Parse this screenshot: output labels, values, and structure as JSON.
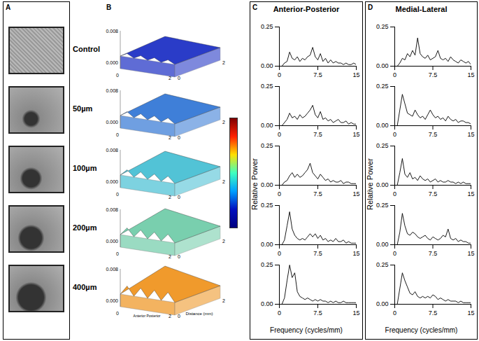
{
  "panel_labels": [
    "A",
    "B",
    "C",
    "D"
  ],
  "conditions": [
    "Control",
    "50µm",
    "100µm",
    "200µm",
    "400µm"
  ],
  "surface_plot": {
    "zlim": [
      0,
      0.008
    ],
    "zticks": [
      {
        "value": 0,
        "label": "0.000"
      },
      0.008
    ],
    "xyticks": [
      0,
      2
    ],
    "axis_title": "Distance (mm)",
    "direction_labels": [
      "Anterior",
      "Posterior"
    ],
    "colors": [
      "#2a3cc8",
      "#3f7fd8",
      "#52c3d6",
      "#79cfae",
      "#f09a2c"
    ],
    "colorbar": {
      "colors": [
        "#7f0000",
        "#ff2000",
        "#ffe000",
        "#40ffc0",
        "#00a0ff",
        "#0010c0",
        "#00007f"
      ]
    }
  },
  "chart_data": [
    {
      "type": "line",
      "title": "Anterior-Posterior",
      "x_label": "Frequency (cycles/mm)",
      "y_label": "Relative Power",
      "xlim": [
        0,
        15
      ],
      "xticks": [
        0,
        7.5,
        15
      ],
      "ylim": [
        0,
        0.25
      ],
      "yticks": [
        {
          "value": 0,
          "label": "0.00"
        },
        0.25
      ],
      "x": [
        0,
        0.5,
        1,
        1.5,
        2,
        2.5,
        3,
        3.5,
        4,
        4.5,
        5,
        5.5,
        6,
        6.5,
        7,
        7.5,
        8,
        8.5,
        9,
        9.5,
        10,
        10.5,
        11,
        11.5,
        12,
        12.5,
        13,
        13.5,
        14,
        14.5,
        15
      ],
      "series": [
        {
          "color": "#000000",
          "values": [
            0,
            0,
            0.02,
            0.03,
            0.09,
            0.05,
            0.04,
            0.06,
            0.03,
            0.05,
            0.04,
            0.06,
            0.07,
            0.12,
            0.06,
            0.04,
            0.08,
            0.03,
            0.05,
            0.02,
            0.04,
            0.02,
            0.03,
            0.02,
            0.02,
            0.01,
            0.02,
            0.01,
            0.01,
            0.02,
            0.01
          ]
        },
        {
          "color": "#000000",
          "values": [
            0,
            0,
            0.02,
            0.04,
            0.08,
            0.05,
            0.06,
            0.04,
            0.07,
            0.05,
            0.06,
            0.08,
            0.1,
            0.13,
            0.07,
            0.05,
            0.09,
            0.04,
            0.05,
            0.03,
            0.04,
            0.02,
            0.03,
            0.04,
            0.02,
            0.02,
            0.03,
            0.01,
            0.02,
            0.01,
            0.01
          ]
        },
        {
          "color": "#000000",
          "values": [
            0,
            0,
            0.02,
            0.03,
            0.06,
            0.08,
            0.05,
            0.07,
            0.05,
            0.06,
            0.08,
            0.1,
            0.14,
            0.08,
            0.06,
            0.04,
            0.07,
            0.05,
            0.03,
            0.04,
            0.02,
            0.03,
            0.02,
            0.02,
            0.03,
            0.01,
            0.02,
            0.02,
            0.01,
            0.01,
            0.01
          ]
        },
        {
          "color": "#000000",
          "values": [
            0,
            0,
            0.03,
            0.12,
            0.21,
            0.1,
            0.06,
            0.04,
            0.03,
            0.04,
            0.03,
            0.05,
            0.07,
            0.05,
            0.07,
            0.04,
            0.06,
            0.03,
            0.04,
            0.02,
            0.03,
            0.02,
            0.04,
            0.02,
            0.02,
            0.03,
            0.01,
            0.02,
            0.01,
            0.01,
            0.01
          ]
        },
        {
          "color": "#000000",
          "values": [
            0,
            0,
            0.04,
            0.15,
            0.25,
            0.17,
            0.2,
            0.08,
            0.05,
            0.04,
            0.03,
            0.04,
            0.03,
            0.02,
            0.03,
            0.02,
            0.03,
            0.02,
            0.02,
            0.01,
            0.02,
            0.01,
            0.02,
            0.01,
            0.01,
            0.02,
            0.01,
            0.01,
            0.01,
            0.01,
            0.01
          ]
        }
      ]
    },
    {
      "type": "line",
      "title": "Medial-Lateral",
      "x_label": "Frequency (cycles/mm)",
      "y_label": "Relative Power",
      "xlim": [
        0,
        15
      ],
      "xticks": [
        0,
        7.5,
        15
      ],
      "ylim": [
        0,
        0.25
      ],
      "yticks": [
        {
          "value": 0,
          "label": "0.00"
        },
        0.25
      ],
      "x": [
        0,
        0.5,
        1,
        1.5,
        2,
        2.5,
        3,
        3.5,
        4,
        4.5,
        5,
        5.5,
        6,
        6.5,
        7,
        7.5,
        8,
        8.5,
        9,
        9.5,
        10,
        10.5,
        11,
        11.5,
        12,
        12.5,
        13,
        13.5,
        14,
        14.5,
        15
      ],
      "series": [
        {
          "color": "#000000",
          "values": [
            0,
            0,
            0.02,
            0.05,
            0.04,
            0.08,
            0.06,
            0.1,
            0.07,
            0.18,
            0.08,
            0.06,
            0.05,
            0.07,
            0.04,
            0.05,
            0.06,
            0.1,
            0.05,
            0.04,
            0.05,
            0.03,
            0.06,
            0.04,
            0.03,
            0.02,
            0.04,
            0.03,
            0.02,
            0.03,
            0.01
          ]
        },
        {
          "color": "#000000",
          "values": [
            0,
            0,
            0.1,
            0.2,
            0.14,
            0.08,
            0.07,
            0.06,
            0.1,
            0.07,
            0.05,
            0.06,
            0.04,
            0.07,
            0.1,
            0.07,
            0.05,
            0.06,
            0.04,
            0.05,
            0.03,
            0.06,
            0.04,
            0.03,
            0.04,
            0.02,
            0.03,
            0.03,
            0.02,
            0.02,
            0.01
          ]
        },
        {
          "color": "#000000",
          "values": [
            0,
            0,
            0.08,
            0.17,
            0.07,
            0.05,
            0.08,
            0.04,
            0.05,
            0.03,
            0.06,
            0.04,
            0.03,
            0.04,
            0.02,
            0.03,
            0.04,
            0.02,
            0.03,
            0.02,
            0.02,
            0.03,
            0.02,
            0.02,
            0.01,
            0.02,
            0.01,
            0.02,
            0.01,
            0.01,
            0.01
          ]
        },
        {
          "color": "#000000",
          "values": [
            0,
            0,
            0.08,
            0.2,
            0.12,
            0.07,
            0.06,
            0.08,
            0.07,
            0.05,
            0.04,
            0.05,
            0.06,
            0.04,
            0.03,
            0.05,
            0.04,
            0.03,
            0.04,
            0.06,
            0.05,
            0.1,
            0.04,
            0.03,
            0.04,
            0.02,
            0.03,
            0.02,
            0.02,
            0.01,
            0.01
          ]
        },
        {
          "color": "#000000",
          "values": [
            0,
            0,
            0.1,
            0.2,
            0.15,
            0.11,
            0.07,
            0.06,
            0.08,
            0.05,
            0.04,
            0.05,
            0.04,
            0.05,
            0.04,
            0.06,
            0.05,
            0.03,
            0.04,
            0.03,
            0.02,
            0.03,
            0.02,
            0.02,
            0.02,
            0.01,
            0.02,
            0.01,
            0.01,
            0.01,
            0.01
          ]
        }
      ]
    }
  ]
}
